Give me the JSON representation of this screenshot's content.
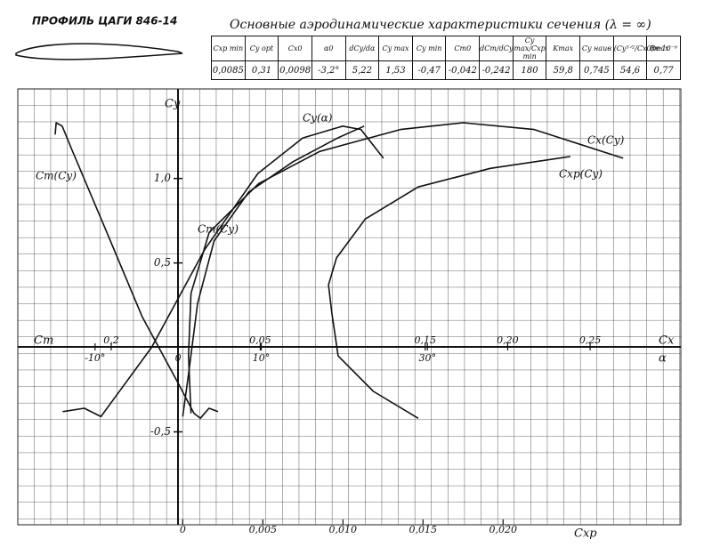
{
  "header": {
    "profile": "ПРОФИЛЬ ЦАГИ 846-14",
    "table_title": "Основные аэродинамические характеристики сечения (λ = ∞)"
  },
  "table": {
    "header": [
      "Cxp min",
      "Cy opt",
      "Cx0",
      "α0",
      "dCy/dα",
      "Cy max",
      "Cy min",
      "Cm0",
      "dCm/dCy",
      "Cy max/Cxp min",
      "Kmax",
      "Cy наив",
      "(Cy³ᐟ²/Cx0)max",
      "Re·10⁻⁶"
    ],
    "rows": [
      [
        "0,0085",
        "0,31",
        "0,0098",
        "-3,2°",
        "5,22",
        "1,53",
        "-0,47",
        "-0,042",
        "-0,242",
        "180",
        "59,8",
        "0,745",
        "54,6",
        "0,77"
      ]
    ]
  },
  "chart_data": {
    "type": "line",
    "y_label": "Cy",
    "ylim": [
      -1.05,
      1.53
    ],
    "yticks": [
      {
        "value": 1.0,
        "label": "1,0"
      },
      {
        "value": 0.5,
        "label": "0,5"
      },
      {
        "value": -0.5,
        "label": "-0,5"
      }
    ],
    "x_axes": [
      {
        "label": "Cx",
        "xlim": [
          -0.097,
          0.305
        ],
        "xticks": [
          {
            "value": 0.05,
            "label": "0,05"
          },
          {
            "value": 0.15,
            "label": "0,15"
          },
          {
            "value": 0.2,
            "label": "0,20"
          },
          {
            "value": 0.25,
            "label": "0,25"
          }
        ]
      },
      {
        "label": "α",
        "xlim": [
          -19.3,
          60.5
        ],
        "xticks": [
          {
            "value": -10,
            "label": "-10°"
          },
          0,
          {
            "value": 10,
            "label": "10°"
          },
          {
            "value": 30,
            "label": "30°"
          }
        ]
      },
      {
        "label": "Cm",
        "xlim": [
          0.48,
          -1.507
        ],
        "xticks": [
          {
            "value": 0.2,
            "label": "0,2"
          }
        ]
      },
      {
        "label": "Cxp",
        "xlim": [
          -0.0103,
          0.0311
        ],
        "xticks": [
          0,
          {
            "value": 0.005,
            "label": "0,005"
          },
          {
            "value": 0.01,
            "label": "0,010"
          },
          {
            "value": 0.015,
            "label": "0,015"
          },
          {
            "value": 0.02,
            "label": "0,020"
          }
        ]
      }
    ],
    "series": [
      {
        "name": "Cy(α)",
        "color": "#111",
        "x_axis": 1,
        "x": [
          -13.9,
          -11.3,
          -9.3,
          -3.2,
          3.2,
          9.6,
          15.0,
          19.8,
          22.0,
          24.7
        ],
        "values": [
          -0.38,
          -0.36,
          -0.41,
          0,
          0.58,
          1.03,
          1.24,
          1.31,
          1.29,
          1.12
        ]
      },
      {
        "name": "Cx(Cy)",
        "color": "#111",
        "x_axis": 0,
        "x": [
          0.008,
          0.0065,
          0.008,
          0.019,
          0.049,
          0.086,
          0.135,
          0.173,
          0.216,
          0.27
        ],
        "values": [
          -0.39,
          -0.05,
          0.32,
          0.68,
          0.97,
          1.16,
          1.29,
          1.33,
          1.29,
          1.12
        ]
      },
      {
        "name": "Cxp(Cy)",
        "color": "#111",
        "x_axis": 3,
        "x": [
          0.0147,
          0.0119,
          0.0097,
          0.0093,
          0.0091,
          0.0096,
          0.0114,
          0.0147,
          0.0192,
          0.0242
        ],
        "values": [
          -0.42,
          -0.26,
          -0.05,
          0.21,
          0.37,
          0.53,
          0.76,
          0.95,
          1.06,
          1.13
        ]
      },
      {
        "name": "Cm(Cy)",
        "color": "#111",
        "x_axis": 2,
        "x": [
          0.368,
          0.365,
          0.347,
          0.32,
          0.213,
          0.107,
          0,
          -0.048,
          -0.067,
          -0.093,
          -0.12
        ],
        "values": [
          1.26,
          1.33,
          1.31,
          1.18,
          0.68,
          0.18,
          -0.21,
          -0.39,
          -0.42,
          -0.36,
          -0.38
        ]
      },
      {
        "name": "Cm(Cy)",
        "color": "#111",
        "x_axis": 0,
        "x": [
          0.003,
          0.0065,
          0.012,
          0.022,
          0.043,
          0.07,
          0.097,
          0.113
        ],
        "values": [
          -0.41,
          -0.16,
          0.26,
          0.63,
          0.92,
          1.1,
          1.24,
          1.31
        ]
      }
    ]
  }
}
